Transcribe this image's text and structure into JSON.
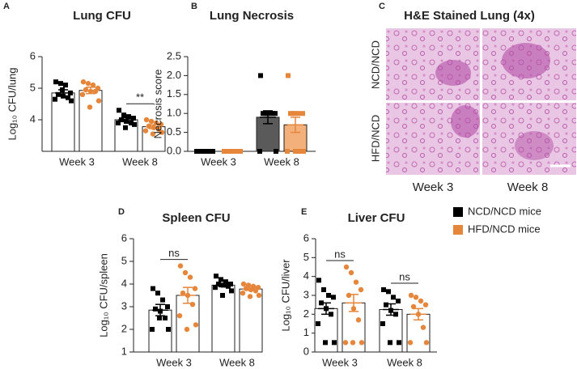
{
  "chart_data": [
    {
      "type": "bar",
      "panel": "A",
      "title": "Lung CFU",
      "y_label": "Log₁₀ CFU/lung",
      "categories": [
        "Week 3",
        "Week 8"
      ],
      "ylim": [
        3,
        6
      ],
      "yticks": [
        4,
        5,
        6
      ],
      "annotations": [
        null,
        "**"
      ],
      "series": [
        {
          "color": "#000000",
          "bar_fill": "#ffffff",
          "marker": "square",
          "values": [
            4.85,
            4.0
          ],
          "errors": [
            0.1,
            0.06
          ],
          "points": [
            [
              5.2,
              5.15,
              5.1,
              4.85,
              4.8,
              4.75,
              4.7,
              4.65,
              4.6,
              4.95
            ],
            [
              4.3,
              4.15,
              4.1,
              4.05,
              4.0,
              3.95,
              3.9,
              3.9,
              3.85,
              3.75
            ]
          ]
        },
        {
          "color": "#e5863b",
          "bar_fill": "#ffffff",
          "marker": "circle",
          "values": [
            4.93,
            3.78
          ],
          "errors": [
            0.1,
            0.06
          ],
          "points": [
            [
              5.2,
              5.15,
              5.1,
              5.0,
              4.95,
              4.9,
              4.9,
              4.8,
              4.6,
              4.4
            ],
            [
              4.0,
              3.95,
              3.9,
              3.85,
              3.8,
              3.75,
              3.7,
              3.65,
              3.6,
              3.55
            ]
          ]
        }
      ]
    },
    {
      "type": "bar",
      "panel": "B",
      "title": "Lung Necrosis",
      "y_label": "Necrosis score",
      "categories": [
        "Week 3",
        "Week 8"
      ],
      "ylim": [
        0,
        2.5
      ],
      "yticks": [
        {
          "value": 0,
          "label": "0.0"
        },
        0.5,
        {
          "value": 1,
          "label": "1.0"
        },
        1.5,
        {
          "value": 2,
          "label": "2.0"
        },
        2.5
      ],
      "series": [
        {
          "color": "#000000",
          "bar_fill": "#5a5a5a",
          "marker": "square",
          "values": [
            0,
            0.9
          ],
          "errors": [
            0,
            0.17
          ],
          "points": [
            [
              0,
              0,
              0,
              0,
              0,
              0,
              0,
              0,
              0,
              0
            ],
            [
              2,
              1,
              1,
              1,
              1,
              1,
              1,
              0,
              0,
              1
            ]
          ]
        },
        {
          "color": "#e5863b",
          "bar_fill": "#f4b07a",
          "marker": "square",
          "values": [
            0,
            0.7
          ],
          "errors": [
            0,
            0.2
          ],
          "points": [
            [
              0,
              0,
              0,
              0,
              0,
              0,
              0,
              0,
              0,
              0
            ],
            [
              2,
              1,
              1,
              1,
              1,
              0,
              0,
              0,
              0,
              1
            ]
          ]
        }
      ]
    },
    {
      "type": "bar",
      "panel": "D",
      "title": "Spleen CFU",
      "y_label": "Log₁₀ CFU/spleen",
      "categories": [
        "Week 3",
        "Week 8"
      ],
      "ylim": [
        1,
        6
      ],
      "yticks": [
        1,
        2,
        3,
        4,
        5,
        6
      ],
      "annotations": [
        "ns",
        null
      ],
      "series": [
        {
          "color": "#000000",
          "bar_fill": "#ffffff",
          "marker": "square",
          "values": [
            2.85,
            3.95
          ],
          "errors": [
            0.25,
            0.07
          ],
          "points": [
            [
              3.8,
              3.6,
              3.3,
              3.0,
              2.9,
              2.8,
              2.5,
              2.0,
              2.0,
              2.5
            ],
            [
              4.35,
              4.2,
              4.1,
              4.0,
              4.0,
              3.95,
              3.9,
              3.85,
              3.7,
              3.5
            ]
          ]
        },
        {
          "color": "#e5863b",
          "bar_fill": "#ffffff",
          "marker": "circle",
          "values": [
            3.5,
            3.78
          ],
          "errors": [
            0.35,
            0.06
          ],
          "points": [
            [
              4.8,
              4.5,
              4.3,
              3.8,
              3.6,
              3.5,
              3.1,
              2.6,
              2.2,
              2.0
            ],
            [
              4.0,
              3.95,
              3.9,
              3.85,
              3.8,
              3.75,
              3.7,
              3.6,
              3.5,
              3.45
            ]
          ]
        }
      ]
    },
    {
      "type": "bar",
      "panel": "E",
      "title": "Liver CFU",
      "y_label": "Log₁₀ CFU/liver",
      "categories": [
        "Week 3",
        "Week 8"
      ],
      "ylim": [
        0,
        6
      ],
      "yticks": [
        0,
        1,
        2,
        3,
        4,
        5,
        6
      ],
      "annotations": [
        "ns",
        "ns"
      ],
      "series": [
        {
          "color": "#000000",
          "bar_fill": "#ffffff",
          "marker": "square",
          "values": [
            2.3,
            2.25
          ],
          "errors": [
            0.3,
            0.3
          ],
          "points": [
            [
              3.8,
              3.3,
              3.0,
              2.9,
              2.6,
              2.3,
              2.0,
              1.5,
              0.5,
              0.5
            ],
            [
              3.3,
              3.2,
              2.9,
              2.7,
              2.5,
              2.2,
              2.0,
              1.5,
              0.5,
              0.5
            ]
          ]
        },
        {
          "color": "#e5863b",
          "bar_fill": "#ffffff",
          "marker": "circle",
          "values": [
            2.6,
            2.0
          ],
          "errors": [
            0.45,
            0.3
          ],
          "points": [
            [
              4.5,
              4.2,
              3.7,
              3.3,
              3.0,
              2.3,
              1.7,
              0.5,
              0.5,
              0.5
            ],
            [
              3.0,
              2.9,
              2.7,
              2.5,
              2.4,
              2.0,
              1.3,
              0.5,
              0.5
            ]
          ]
        }
      ]
    }
  ],
  "legend": [
    {
      "name": "NCD/NCD mice",
      "color": "#000000"
    },
    {
      "name": "HFD/NCD mice",
      "color": "#e5863b"
    }
  ],
  "image_panel": {
    "panel": "C",
    "title": "H&E Stained Lung (4x)",
    "rows": [
      "NCD/NCD",
      "HFD/NCD"
    ],
    "columns": [
      "Week 3",
      "Week 8"
    ]
  }
}
